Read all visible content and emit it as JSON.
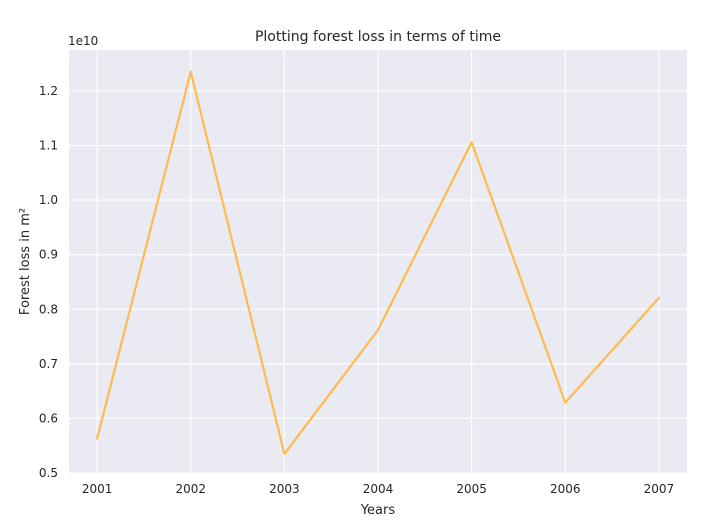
{
  "chart_data": {
    "type": "line",
    "title": "Plotting forest loss in terms of time",
    "xlabel": "Years",
    "ylabel": "Forest loss in m²",
    "offset_label": "1e10",
    "x": [
      2001,
      2002,
      2003,
      2004,
      2005,
      2006,
      2007
    ],
    "x_tick_labels": [
      "2001",
      "2002",
      "2003",
      "2004",
      "2005",
      "2006",
      "2007"
    ],
    "series": [
      {
        "values": [
          5630000000.0,
          12350000000.0,
          5350000000.0,
          7620000000.0,
          11060000000.0,
          6290000000.0,
          8210000000.0
        ],
        "color": "#ffbb4d"
      }
    ],
    "y_ticks": [
      5000000000.0,
      6000000000.0,
      7000000000.0,
      8000000000.0,
      9000000000.0,
      10000000000.0,
      11000000000.0,
      12000000000.0
    ],
    "y_tick_labels": [
      "0.5",
      "0.6",
      "0.7",
      "0.8",
      "0.9",
      "1.0",
      "1.1",
      "1.2"
    ],
    "xlim": [
      2000.7,
      2007.3
    ],
    "ylim": [
      5000000000.0,
      12750000000.0
    ],
    "grid": true,
    "style": {
      "background": "#eaeaf2",
      "grid_color": "#ffffff",
      "text_color": "#262626"
    }
  }
}
